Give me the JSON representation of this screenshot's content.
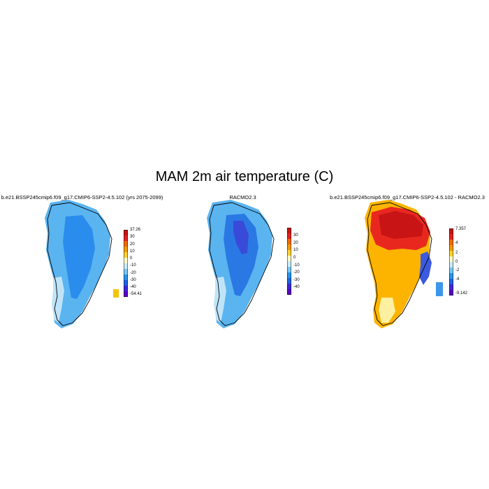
{
  "title": "MAM 2m air temperature (C)",
  "panels": [
    {
      "title": "b.e21.BSSP245cmip6.f09_g17.CMIP6-SSP2-4.5.102 (yrs 2075-2099)",
      "colorbar_labels": [
        "37.26",
        "30",
        "20",
        "10",
        "0",
        "-10",
        "-20",
        "-30",
        "-40",
        "-54.41"
      ],
      "colorbar_colors": [
        "#c81414",
        "#e62020",
        "#f56a00",
        "#f59a00",
        "#fcd430",
        "#fdfbc8",
        "#c8ecfa",
        "#78c8f5",
        "#2896eb",
        "#1e64e6",
        "#3c28dc",
        "#5a00c8"
      ]
    },
    {
      "title": "RACMO2.3",
      "colorbar_labels": [
        "30",
        "20",
        "10",
        "0",
        "-10",
        "-20",
        "-30",
        "-40"
      ],
      "colorbar_colors": [
        "#c81414",
        "#e62020",
        "#f56a00",
        "#f59a00",
        "#fcd430",
        "#fdfbc8",
        "#c8ecfa",
        "#78c8f5",
        "#2896eb",
        "#1e64e6",
        "#3c28dc",
        "#5a00c8"
      ]
    },
    {
      "title": "b.e21.BSSP245cmip6.f09_g17.CMIP6-SSP2-4.5.102 - RACMO2.3",
      "colorbar_labels": [
        "7.357",
        "4",
        "2",
        "0",
        "-2",
        "-4",
        "-9.142"
      ],
      "colorbar_colors": [
        "#c81414",
        "#e62020",
        "#f56a00",
        "#f59a00",
        "#fcd430",
        "#fdfbc8",
        "#c8ecfa",
        "#78c8f5",
        "#2896eb",
        "#1e64e6",
        "#3c28dc",
        "#5a00c8"
      ]
    }
  ]
}
